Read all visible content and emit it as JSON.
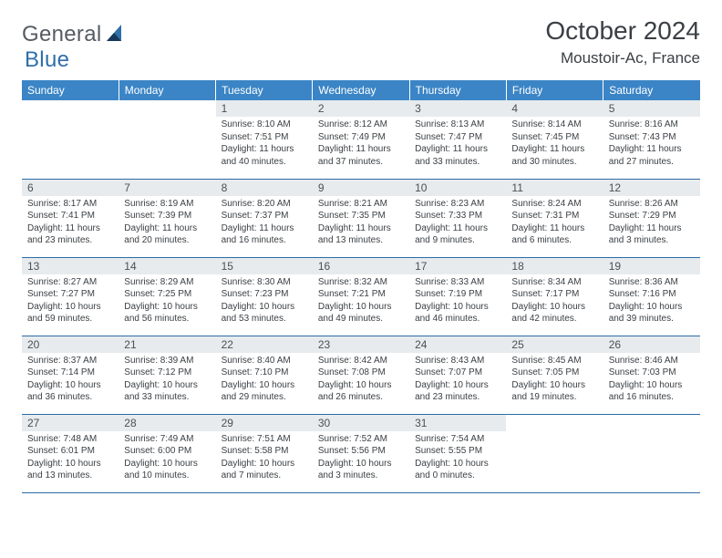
{
  "logo": {
    "text1": "General",
    "text2": "Blue"
  },
  "title": "October 2024",
  "location": "Moustoir-Ac, France",
  "colors": {
    "header_bg": "#3b85c6",
    "daynum_bg": "#e7ebee",
    "rule": "#2d6ca6",
    "logo_gray": "#555c63",
    "logo_blue": "#2f6faa"
  },
  "weekdays": [
    "Sunday",
    "Monday",
    "Tuesday",
    "Wednesday",
    "Thursday",
    "Friday",
    "Saturday"
  ],
  "weeks": [
    [
      {
        "n": "",
        "sr": "",
        "ss": "",
        "dl": ""
      },
      {
        "n": "",
        "sr": "",
        "ss": "",
        "dl": ""
      },
      {
        "n": "1",
        "sr": "Sunrise: 8:10 AM",
        "ss": "Sunset: 7:51 PM",
        "dl": "Daylight: 11 hours and 40 minutes."
      },
      {
        "n": "2",
        "sr": "Sunrise: 8:12 AM",
        "ss": "Sunset: 7:49 PM",
        "dl": "Daylight: 11 hours and 37 minutes."
      },
      {
        "n": "3",
        "sr": "Sunrise: 8:13 AM",
        "ss": "Sunset: 7:47 PM",
        "dl": "Daylight: 11 hours and 33 minutes."
      },
      {
        "n": "4",
        "sr": "Sunrise: 8:14 AM",
        "ss": "Sunset: 7:45 PM",
        "dl": "Daylight: 11 hours and 30 minutes."
      },
      {
        "n": "5",
        "sr": "Sunrise: 8:16 AM",
        "ss": "Sunset: 7:43 PM",
        "dl": "Daylight: 11 hours and 27 minutes."
      }
    ],
    [
      {
        "n": "6",
        "sr": "Sunrise: 8:17 AM",
        "ss": "Sunset: 7:41 PM",
        "dl": "Daylight: 11 hours and 23 minutes."
      },
      {
        "n": "7",
        "sr": "Sunrise: 8:19 AM",
        "ss": "Sunset: 7:39 PM",
        "dl": "Daylight: 11 hours and 20 minutes."
      },
      {
        "n": "8",
        "sr": "Sunrise: 8:20 AM",
        "ss": "Sunset: 7:37 PM",
        "dl": "Daylight: 11 hours and 16 minutes."
      },
      {
        "n": "9",
        "sr": "Sunrise: 8:21 AM",
        "ss": "Sunset: 7:35 PM",
        "dl": "Daylight: 11 hours and 13 minutes."
      },
      {
        "n": "10",
        "sr": "Sunrise: 8:23 AM",
        "ss": "Sunset: 7:33 PM",
        "dl": "Daylight: 11 hours and 9 minutes."
      },
      {
        "n": "11",
        "sr": "Sunrise: 8:24 AM",
        "ss": "Sunset: 7:31 PM",
        "dl": "Daylight: 11 hours and 6 minutes."
      },
      {
        "n": "12",
        "sr": "Sunrise: 8:26 AM",
        "ss": "Sunset: 7:29 PM",
        "dl": "Daylight: 11 hours and 3 minutes."
      }
    ],
    [
      {
        "n": "13",
        "sr": "Sunrise: 8:27 AM",
        "ss": "Sunset: 7:27 PM",
        "dl": "Daylight: 10 hours and 59 minutes."
      },
      {
        "n": "14",
        "sr": "Sunrise: 8:29 AM",
        "ss": "Sunset: 7:25 PM",
        "dl": "Daylight: 10 hours and 56 minutes."
      },
      {
        "n": "15",
        "sr": "Sunrise: 8:30 AM",
        "ss": "Sunset: 7:23 PM",
        "dl": "Daylight: 10 hours and 53 minutes."
      },
      {
        "n": "16",
        "sr": "Sunrise: 8:32 AM",
        "ss": "Sunset: 7:21 PM",
        "dl": "Daylight: 10 hours and 49 minutes."
      },
      {
        "n": "17",
        "sr": "Sunrise: 8:33 AM",
        "ss": "Sunset: 7:19 PM",
        "dl": "Daylight: 10 hours and 46 minutes."
      },
      {
        "n": "18",
        "sr": "Sunrise: 8:34 AM",
        "ss": "Sunset: 7:17 PM",
        "dl": "Daylight: 10 hours and 42 minutes."
      },
      {
        "n": "19",
        "sr": "Sunrise: 8:36 AM",
        "ss": "Sunset: 7:16 PM",
        "dl": "Daylight: 10 hours and 39 minutes."
      }
    ],
    [
      {
        "n": "20",
        "sr": "Sunrise: 8:37 AM",
        "ss": "Sunset: 7:14 PM",
        "dl": "Daylight: 10 hours and 36 minutes."
      },
      {
        "n": "21",
        "sr": "Sunrise: 8:39 AM",
        "ss": "Sunset: 7:12 PM",
        "dl": "Daylight: 10 hours and 33 minutes."
      },
      {
        "n": "22",
        "sr": "Sunrise: 8:40 AM",
        "ss": "Sunset: 7:10 PM",
        "dl": "Daylight: 10 hours and 29 minutes."
      },
      {
        "n": "23",
        "sr": "Sunrise: 8:42 AM",
        "ss": "Sunset: 7:08 PM",
        "dl": "Daylight: 10 hours and 26 minutes."
      },
      {
        "n": "24",
        "sr": "Sunrise: 8:43 AM",
        "ss": "Sunset: 7:07 PM",
        "dl": "Daylight: 10 hours and 23 minutes."
      },
      {
        "n": "25",
        "sr": "Sunrise: 8:45 AM",
        "ss": "Sunset: 7:05 PM",
        "dl": "Daylight: 10 hours and 19 minutes."
      },
      {
        "n": "26",
        "sr": "Sunrise: 8:46 AM",
        "ss": "Sunset: 7:03 PM",
        "dl": "Daylight: 10 hours and 16 minutes."
      }
    ],
    [
      {
        "n": "27",
        "sr": "Sunrise: 7:48 AM",
        "ss": "Sunset: 6:01 PM",
        "dl": "Daylight: 10 hours and 13 minutes."
      },
      {
        "n": "28",
        "sr": "Sunrise: 7:49 AM",
        "ss": "Sunset: 6:00 PM",
        "dl": "Daylight: 10 hours and 10 minutes."
      },
      {
        "n": "29",
        "sr": "Sunrise: 7:51 AM",
        "ss": "Sunset: 5:58 PM",
        "dl": "Daylight: 10 hours and 7 minutes."
      },
      {
        "n": "30",
        "sr": "Sunrise: 7:52 AM",
        "ss": "Sunset: 5:56 PM",
        "dl": "Daylight: 10 hours and 3 minutes."
      },
      {
        "n": "31",
        "sr": "Sunrise: 7:54 AM",
        "ss": "Sunset: 5:55 PM",
        "dl": "Daylight: 10 hours and 0 minutes."
      },
      {
        "n": "",
        "sr": "",
        "ss": "",
        "dl": ""
      },
      {
        "n": "",
        "sr": "",
        "ss": "",
        "dl": ""
      }
    ]
  ]
}
